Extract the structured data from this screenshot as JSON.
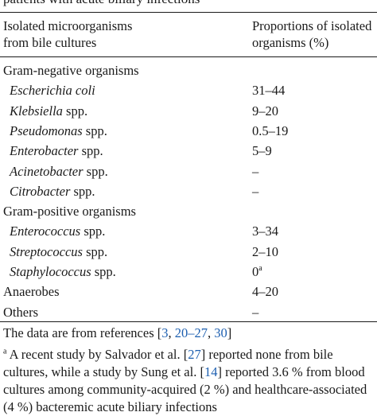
{
  "caption_tail": "patients with acute biliary infections",
  "header": {
    "col1": [
      "Isolated microorganisms",
      "from bile cultures"
    ],
    "col2": [
      "Proportions of isolated",
      "organisms (%)"
    ]
  },
  "rows": [
    {
      "kind": "group",
      "genus": "Gram-negative organisms",
      "suffix": "",
      "value": "",
      "sup": ""
    },
    {
      "kind": "item",
      "genus": "Escherichia coli",
      "suffix": "",
      "value": "31–44",
      "sup": ""
    },
    {
      "kind": "item",
      "genus": "Klebsiella",
      "suffix": " spp.",
      "value": "9–20",
      "sup": ""
    },
    {
      "kind": "item",
      "genus": "Pseudomonas",
      "suffix": " spp.",
      "value": "0.5–19",
      "sup": ""
    },
    {
      "kind": "item",
      "genus": "Enterobacter",
      "suffix": " spp.",
      "value": "5–9",
      "sup": ""
    },
    {
      "kind": "item",
      "genus": "Acinetobacter",
      "suffix": " spp.",
      "value": "–",
      "sup": ""
    },
    {
      "kind": "item",
      "genus": "Citrobacter",
      "suffix": " spp.",
      "value": "–",
      "sup": ""
    },
    {
      "kind": "group",
      "genus": "Gram-positive organisms",
      "suffix": "",
      "value": "",
      "sup": ""
    },
    {
      "kind": "item",
      "genus": "Enterococcus",
      "suffix": " spp.",
      "value": "3–34",
      "sup": ""
    },
    {
      "kind": "item",
      "genus": "Streptococcus",
      "suffix": " spp.",
      "value": "2–10",
      "sup": ""
    },
    {
      "kind": "item",
      "genus": "Staphylococcus",
      "suffix": " spp.",
      "value": "0",
      "sup": "a"
    },
    {
      "kind": "group",
      "genus": "Anaerobes",
      "suffix": "",
      "value": "4–20",
      "sup": ""
    },
    {
      "kind": "group",
      "genus": "Others",
      "suffix": "",
      "value": "–",
      "sup": ""
    }
  ],
  "notes": {
    "data_prefix": "The data are from references [",
    "data_refs": [
      {
        "text": "3",
        "after": ", "
      },
      {
        "text": "20–27",
        "after": ", "
      },
      {
        "text": "30",
        "after": ""
      }
    ],
    "data_suffix": "]",
    "footnote_marker": "a",
    "footnote_part1": " A recent study by Salvador et al. [",
    "footnote_ref1": "27",
    "footnote_part2": "] reported none from bile cultures, while a study by Sung et al. [",
    "footnote_ref2": "14",
    "footnote_part3": "] reported 3.6 % from blood cultures among community-acquired (2 %) and healthcare-associated (4 %) bacteremic acute biliary infections"
  }
}
